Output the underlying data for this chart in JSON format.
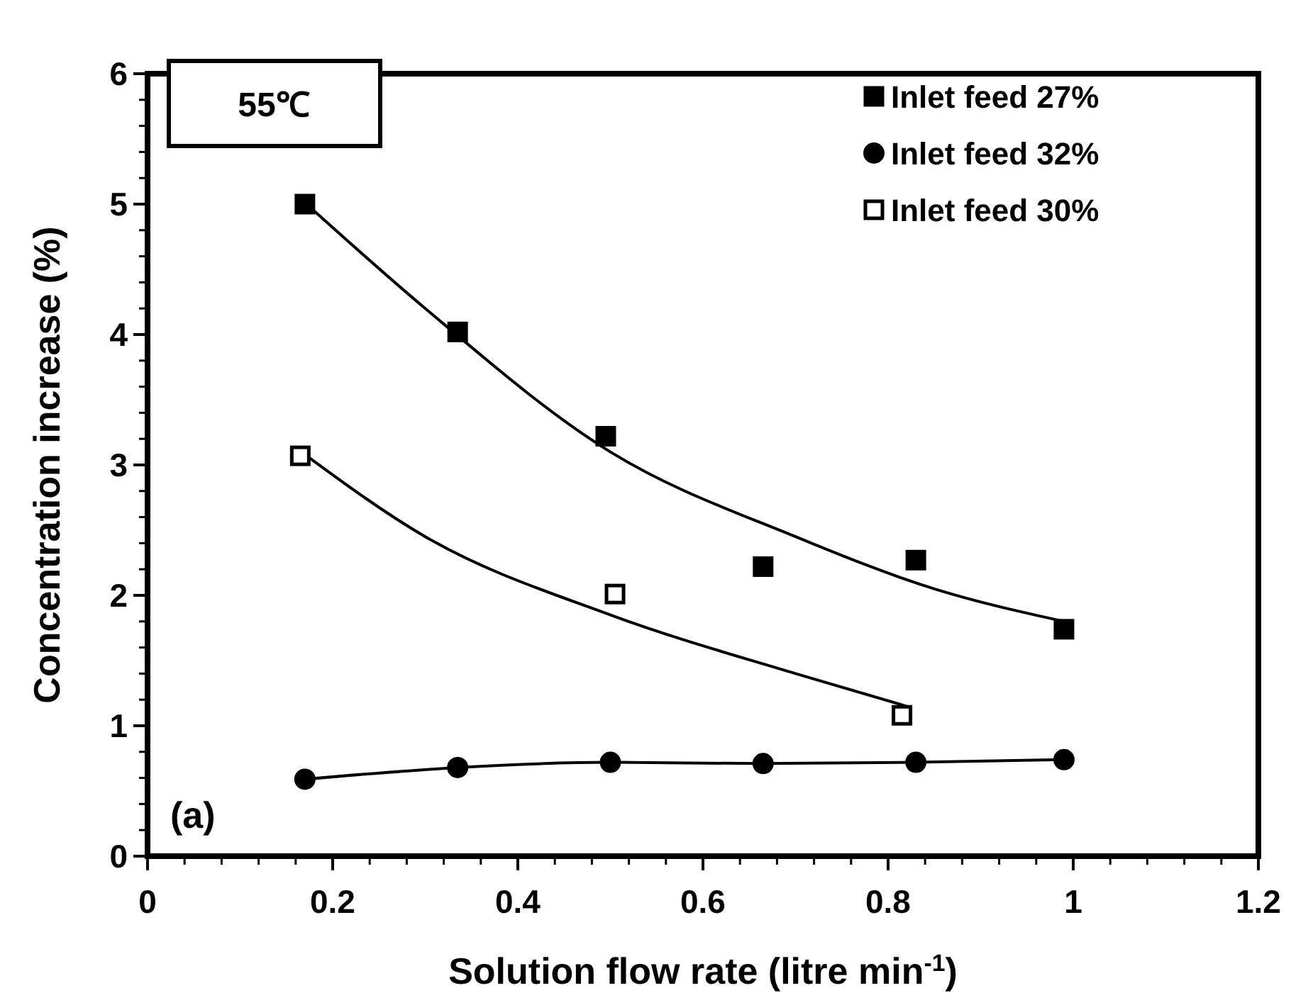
{
  "chart_data": {
    "type": "scatter",
    "xlabel": "Solution flow rate (litre min$^{-1}$)",
    "ylabel": "Concentration increase (%)",
    "xlim": [
      0,
      1.2
    ],
    "xticks": [
      0,
      0.2,
      0.4,
      0.6,
      0.8,
      1,
      1.2
    ],
    "ylim": [
      0,
      6
    ],
    "yticks": [
      0,
      1,
      2,
      3,
      4,
      5,
      6
    ],
    "grid": false,
    "legend": "top right",
    "annotations": [
      "55℃",
      "(a)"
    ],
    "series": [
      {
        "name": "Inlet feed 27%",
        "marker": "square",
        "color": "#000000",
        "x": [
          0.17,
          0.335,
          0.495,
          0.665,
          0.83,
          0.99
        ],
        "values": [
          5.0,
          4.02,
          3.22,
          2.22,
          2.27,
          1.74
        ]
      },
      {
        "name": "Inlet feed 32%",
        "type": "line",
        "marker": "circle",
        "color": "#000000",
        "x": [
          0.17,
          0.335,
          0.5,
          0.665,
          0.83,
          0.99
        ],
        "values": [
          0.59,
          0.68,
          0.72,
          0.71,
          0.72,
          0.74
        ]
      },
      {
        "name": "Inlet feed 30%",
        "marker": "square",
        "color": "#ffffff",
        "x": [
          0.165,
          0.505,
          0.815
        ],
        "values": [
          3.07,
          2.01,
          1.08
        ]
      },
      {
        "type": "line",
        "marker": "none",
        "color": "#000000",
        "x": [
          0.175,
          0.3,
          0.5,
          0.7,
          0.85,
          0.99
        ],
        "values": [
          4.98,
          4.2,
          3.1,
          2.45,
          2.05,
          1.8
        ]
      },
      {
        "type": "line",
        "marker": "none",
        "color": "#000000",
        "x": [
          0.17,
          0.3,
          0.5,
          0.7,
          0.82
        ],
        "values": [
          3.08,
          2.45,
          1.85,
          1.4,
          1.15
        ]
      }
    ]
  }
}
